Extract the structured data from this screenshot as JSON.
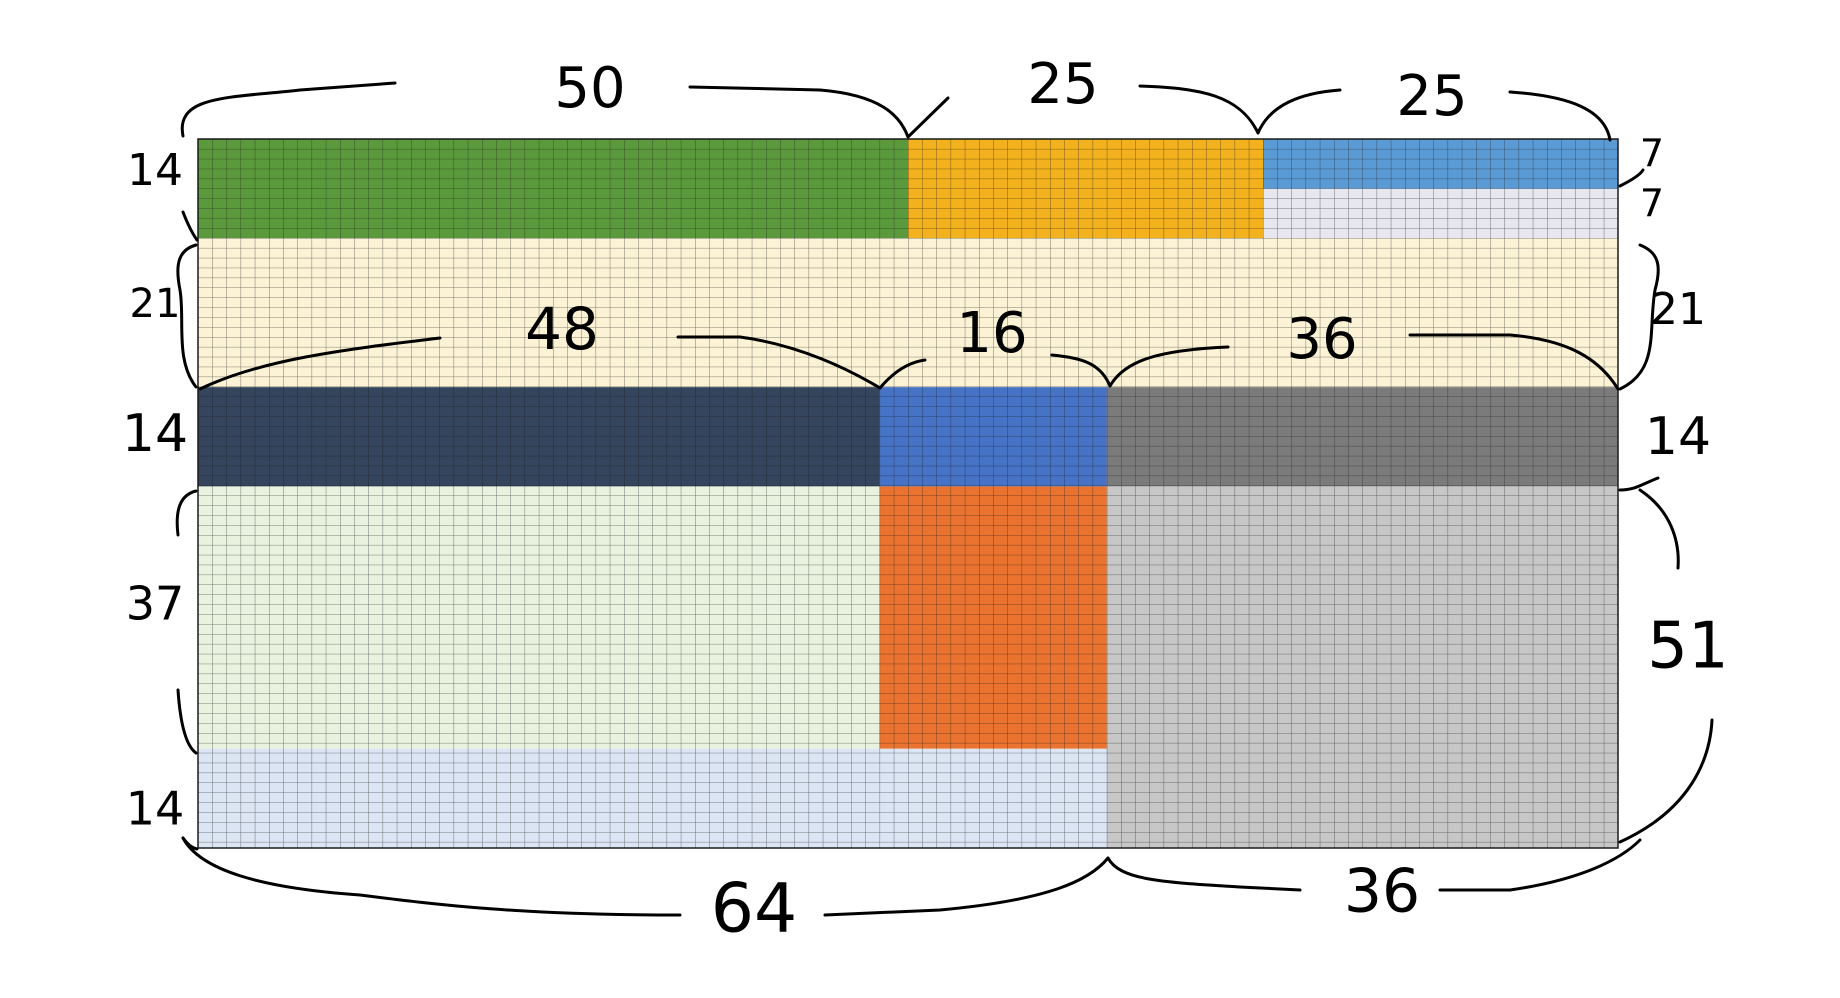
{
  "grid": {
    "columns": 100,
    "rows": 100,
    "line_color": "#1a1a1a"
  },
  "regions": [
    {
      "id": "green",
      "color": "#5b9a3c",
      "col": 0,
      "row": 0,
      "cols": 50,
      "rows": 14
    },
    {
      "id": "gold",
      "color": "#f3b21d",
      "col": 50,
      "row": 0,
      "cols": 25,
      "rows": 14
    },
    {
      "id": "light-blue",
      "color": "#5b9bd5",
      "col": 75,
      "row": 0,
      "cols": 25,
      "rows": 7
    },
    {
      "id": "light-grey",
      "color": "#e6e7ef",
      "col": 75,
      "row": 7,
      "cols": 25,
      "rows": 7
    },
    {
      "id": "cream",
      "color": "#fcf3d6",
      "col": 0,
      "row": 14,
      "cols": 100,
      "rows": 21
    },
    {
      "id": "navy",
      "color": "#34455d",
      "col": 0,
      "row": 35,
      "cols": 48,
      "rows": 14
    },
    {
      "id": "blue",
      "color": "#4673c6",
      "col": 48,
      "row": 35,
      "cols": 16,
      "rows": 14
    },
    {
      "id": "dark-grey",
      "color": "#7b7b7b",
      "col": 64,
      "row": 35,
      "cols": 36,
      "rows": 14
    },
    {
      "id": "pale-green",
      "color": "#e9f2df",
      "col": 0,
      "row": 49,
      "cols": 48,
      "rows": 37
    },
    {
      "id": "orange",
      "color": "#ea7330",
      "col": 48,
      "row": 49,
      "cols": 16,
      "rows": 37
    },
    {
      "id": "silver",
      "color": "#c7c7c7",
      "col": 64,
      "row": 49,
      "cols": 36,
      "rows": 51
    },
    {
      "id": "pale-blue",
      "color": "#dce5f4",
      "col": 0,
      "row": 86,
      "cols": 64,
      "rows": 14
    }
  ],
  "labels": {
    "top": [
      "50",
      "25",
      "25"
    ],
    "middle": [
      "48",
      "16",
      "36"
    ],
    "bottom": [
      "64",
      "36"
    ],
    "left": [
      "14",
      "21",
      "14",
      "37",
      "14"
    ],
    "right": [
      "7",
      "7",
      "21",
      "14",
      "51"
    ]
  }
}
